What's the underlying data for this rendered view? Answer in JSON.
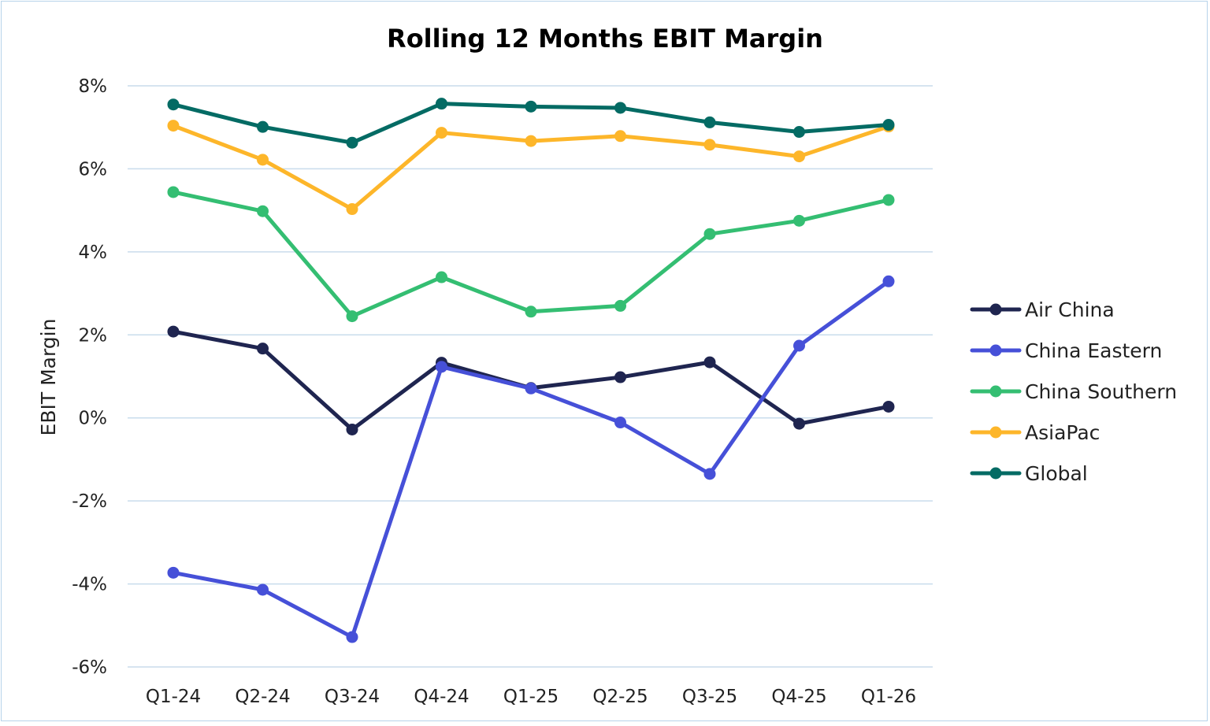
{
  "chart_data": {
    "type": "line",
    "title": "Rolling 12 Months EBIT Margin",
    "xlabel": "",
    "ylabel": "EBIT Margin",
    "categories": [
      "Q1-24",
      "Q2-24",
      "Q3-24",
      "Q4-24",
      "Q1-25",
      "Q2-25",
      "Q3-25",
      "Q4-25",
      "Q1-26"
    ],
    "ylim": [
      -6,
      8
    ],
    "yticks": [
      8,
      6,
      4,
      2,
      0,
      -2,
      -4,
      -6
    ],
    "ytick_labels": [
      "8%",
      "6%",
      "4%",
      "2%",
      "0%",
      "-2%",
      "-4%",
      "-6%"
    ],
    "grid": true,
    "legend_position": "right",
    "series": [
      {
        "name": "Air China",
        "color": "#1f2550",
        "values": [
          2.08,
          1.67,
          -0.28,
          1.33,
          0.72,
          0.98,
          1.34,
          -0.14,
          0.27
        ]
      },
      {
        "name": "China Eastern",
        "color": "#4650d8",
        "values": [
          -3.73,
          -4.14,
          -5.28,
          1.23,
          0.71,
          -0.11,
          -1.35,
          1.74,
          3.29
        ]
      },
      {
        "name": "China Southern",
        "color": "#34be72",
        "values": [
          5.44,
          4.98,
          2.45,
          3.39,
          2.56,
          2.7,
          4.43,
          4.75,
          5.25
        ]
      },
      {
        "name": "AsiaPac",
        "color": "#fdb62a",
        "values": [
          7.04,
          6.22,
          5.03,
          6.87,
          6.67,
          6.79,
          6.58,
          6.3,
          7.02
        ]
      },
      {
        "name": "Global",
        "color": "#046b64",
        "values": [
          7.55,
          7.01,
          6.63,
          7.57,
          7.5,
          7.47,
          7.12,
          6.89,
          7.06
        ]
      }
    ]
  }
}
